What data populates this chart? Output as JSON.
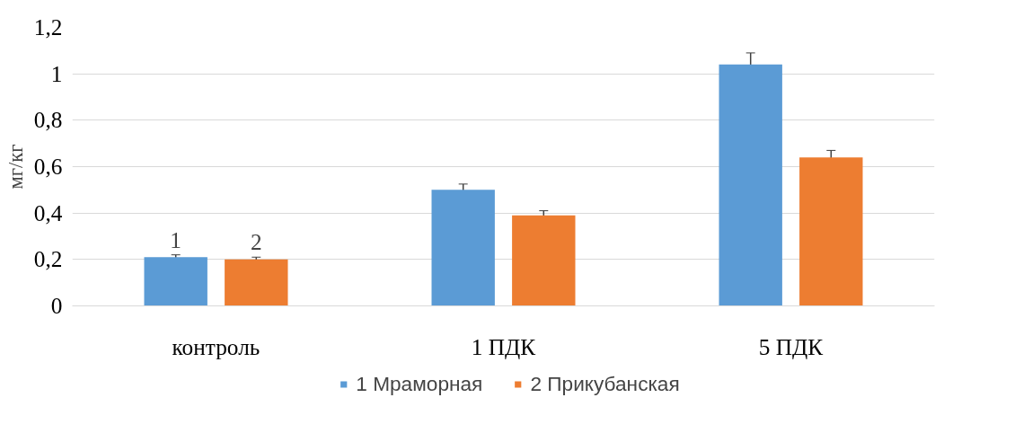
{
  "chart_data": {
    "type": "bar",
    "ylabel": "мг/кг",
    "categories": [
      "контроль",
      "1 ПДК",
      "5 ПДК"
    ],
    "series": [
      {
        "name": "1 Мраморная",
        "color": "#5b9bd5",
        "values": [
          0.21,
          0.5,
          1.04
        ],
        "errors": [
          0.01,
          0.025,
          0.05
        ]
      },
      {
        "name": "2 Прикубанская",
        "color": "#ed7d31",
        "values": [
          0.2,
          0.39,
          0.64
        ],
        "errors": [
          0.01,
          0.02,
          0.03
        ]
      }
    ],
    "ylim": [
      0,
      1.2
    ],
    "yticks": [
      0,
      {
        "value": 0.2,
        "label": "0,2"
      },
      {
        "value": 0.4,
        "label": "0,4"
      },
      {
        "value": 0.6,
        "label": "0,6"
      },
      {
        "value": 0.8,
        "label": "0,8"
      },
      1,
      {
        "value": 1.2,
        "label": "1,2"
      }
    ],
    "annotations": [
      "1",
      "2"
    ],
    "grid": "y",
    "legend": "bottom"
  }
}
